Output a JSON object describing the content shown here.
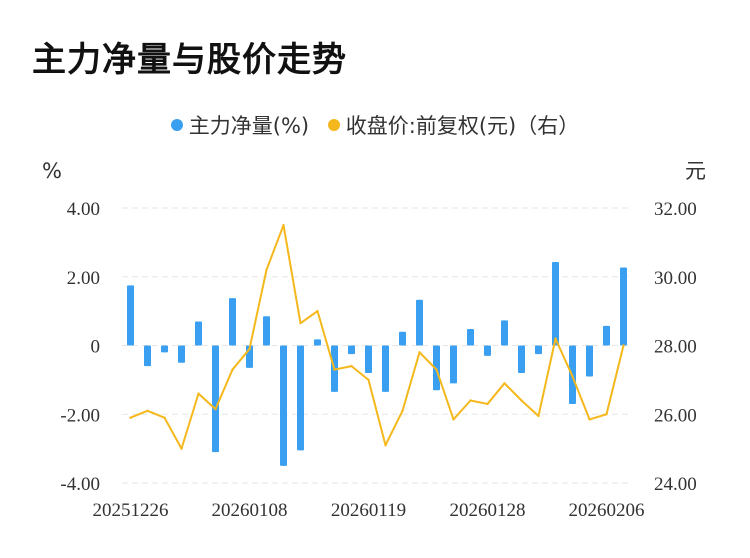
{
  "title": "主力净量与股价走势",
  "legend": {
    "bar_label": "主力净量(%)",
    "line_label": "收盘价:前复权(元)（右）"
  },
  "colors": {
    "bar": "#3a9ff0",
    "line": "#f5b81c",
    "grid": "#e6e6e6"
  },
  "chart_data": {
    "type": "bar+line",
    "left_axis": {
      "unit": "%",
      "ylim": [
        -4,
        4
      ],
      "ticks": [
        "4.00",
        "2.00",
        "0",
        "-2.00",
        "-4.00"
      ]
    },
    "right_axis": {
      "unit": "元",
      "ylim": [
        24,
        32
      ],
      "ticks": [
        "32.00",
        "30.00",
        "28.00",
        "26.00",
        "24.00"
      ]
    },
    "x_tick_labels": [
      "20251226",
      "20260108",
      "20260119",
      "20260128",
      "20260206"
    ],
    "series": [
      {
        "name": "主力净量(%)",
        "type": "bar",
        "values": [
          1.75,
          -0.6,
          -0.2,
          -0.5,
          0.7,
          -3.1,
          1.38,
          -0.65,
          0.85,
          -3.5,
          -3.05,
          0.18,
          -1.35,
          -0.25,
          -0.8,
          -1.35,
          0.4,
          1.33,
          -1.3,
          -1.1,
          0.48,
          -0.3,
          0.73,
          -0.8,
          -0.25,
          2.43,
          -1.7,
          -0.9,
          0.57,
          2.27
        ]
      },
      {
        "name": "收盘价:前复权(元)（右）",
        "type": "line",
        "values": [
          25.9,
          26.1,
          25.9,
          25.0,
          26.6,
          26.15,
          27.3,
          27.9,
          30.2,
          31.5,
          28.65,
          29.0,
          27.3,
          27.4,
          27.0,
          25.1,
          26.1,
          27.8,
          27.3,
          25.85,
          26.4,
          26.3,
          26.9,
          26.4,
          25.95,
          28.2,
          27.1,
          25.85,
          26.0,
          28.0
        ]
      }
    ]
  }
}
